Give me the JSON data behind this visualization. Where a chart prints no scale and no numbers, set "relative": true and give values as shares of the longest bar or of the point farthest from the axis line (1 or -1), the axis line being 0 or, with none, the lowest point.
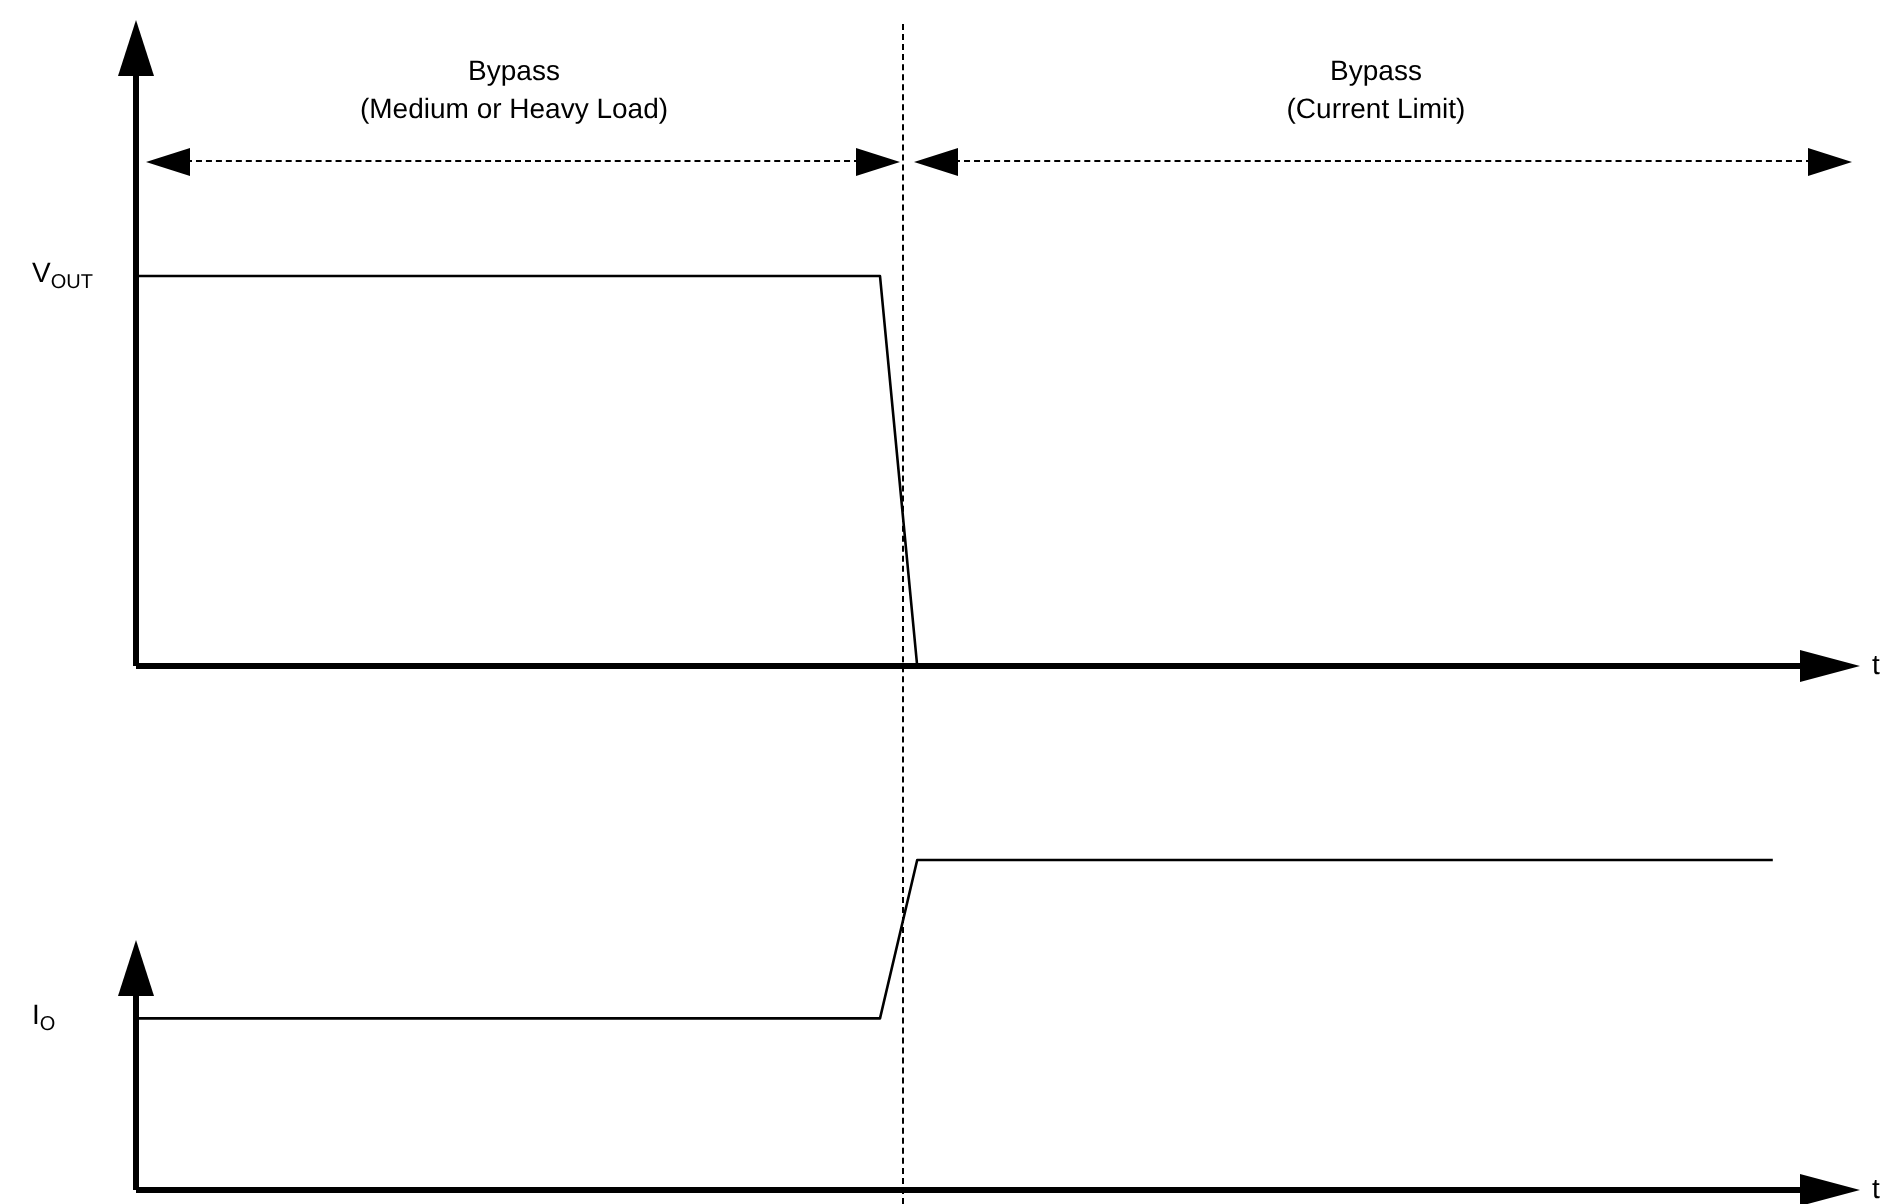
{
  "chart_data": [
    {
      "type": "line",
      "relative": true,
      "tick_labels": false,
      "marker": "none",
      "ylabel": "V$_{OUT}$",
      "xlabel": "t",
      "annotations": [
        "Bypass\n(Medium or Heavy Load)",
        "Bypass\n(Current Limit)"
      ],
      "categories": [
        null,
        null,
        null,
        null,
        null,
        null,
        null,
        null,
        null,
        null,
        null,
        null,
        null,
        null,
        null,
        null,
        null,
        null,
        null,
        null,
        null,
        null,
        null,
        null,
        null,
        null,
        null,
        null,
        null,
        null,
        null,
        null,
        null,
        null,
        null,
        null,
        null,
        null,
        null,
        null,
        null,
        null,
        null,
        null,
        null,
        null,
        null
      ],
      "series": [
        {
          "color": "#000000",
          "values": [
            1,
            1,
            1,
            1,
            1,
            1,
            1,
            1,
            1,
            1,
            1,
            1,
            1,
            1,
            1,
            1,
            1,
            1,
            1,
            1,
            1,
            0,
            null,
            null,
            null,
            null,
            null,
            null,
            null,
            null,
            null,
            null,
            null,
            null,
            null,
            null,
            null,
            null,
            null,
            null,
            null,
            null,
            null,
            null,
            null,
            null,
            null
          ]
        }
      ]
    },
    {
      "type": "line",
      "relative": true,
      "tick_labels": false,
      "marker": "none",
      "ylabel": "I$_{O}$",
      "xlabel": "t",
      "categories": [
        null,
        null,
        null,
        null,
        null,
        null,
        null,
        null,
        null,
        null,
        null,
        null,
        null,
        null,
        null,
        null,
        null,
        null,
        null,
        null,
        null,
        null,
        null,
        null,
        null,
        null,
        null,
        null,
        null,
        null,
        null,
        null,
        null,
        null,
        null,
        null,
        null,
        null,
        null,
        null,
        null,
        null,
        null,
        null,
        null,
        null,
        null
      ],
      "series": [
        {
          "color": "#000000",
          "values": [
            0.52,
            0.52,
            0.52,
            0.52,
            0.52,
            0.52,
            0.52,
            0.52,
            0.52,
            0.52,
            0.52,
            0.52,
            0.52,
            0.52,
            0.52,
            0.52,
            0.52,
            0.52,
            0.52,
            0.52,
            0.52,
            1,
            1,
            1,
            1,
            1,
            1,
            1,
            1,
            1,
            1,
            1,
            1,
            1,
            1,
            1,
            1,
            1,
            1,
            1,
            1,
            1,
            1,
            1,
            1,
            null,
            null
          ]
        }
      ]
    }
  ]
}
